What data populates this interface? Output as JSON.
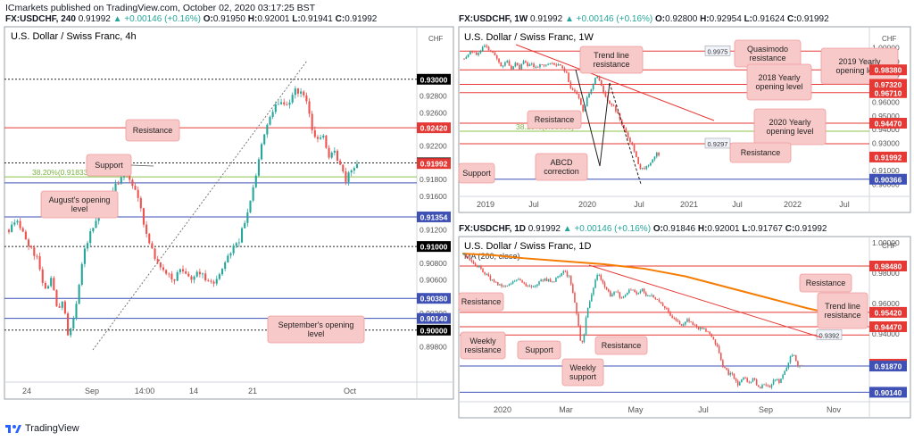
{
  "header": {
    "publisher": "ICmarkets published on TradingView.com, October 02, 2020 03:17:25 BST"
  },
  "footer": {
    "brand": "TradingView"
  },
  "colors": {
    "up": "#26a69a",
    "down": "#ef5350",
    "resistance": "#e53935",
    "support": "#3f51b5",
    "fib": "#8bc34a",
    "ma": "#f57c00",
    "box_fill": "#f8c9c9",
    "box_stroke": "#ef9a9a"
  },
  "panels": [
    {
      "id": "h4",
      "ticker": "FX:USDCHF, 240",
      "ohlc": {
        "last": "0.91992",
        "change": "▲ +0.00146 (+0.16%)",
        "o": "0.91950",
        "h": "0.92001",
        "l": "0.91941",
        "c": "0.91992"
      },
      "title": "U.S. Dollar / Swiss Franc, 4h",
      "currency": "CHF"
    },
    {
      "id": "w1",
      "ticker": "FX:USDCHF, 1W",
      "ohlc": {
        "last": "0.91992",
        "change": "▲ +0.00146 (+0.16%)",
        "o": "0.92800",
        "h": "0.92954",
        "l": "0.91624",
        "c": "0.91992"
      },
      "title": "U.S. Dollar / Swiss Franc, 1W",
      "currency": "CHF"
    },
    {
      "id": "d1",
      "ticker": "FX:USDCHF, 1D",
      "ohlc": {
        "last": "0.91992",
        "change": "▲ +0.00146 (+0.16%)",
        "o": "0.91846",
        "h": "0.92001",
        "l": "0.91767",
        "c": "0.91992"
      },
      "title": "U.S. Dollar / Swiss Franc, 1D",
      "subtitle": "MA (200, close)",
      "currency": "CHF"
    }
  ],
  "chart_data": [
    {
      "panel": "h4",
      "type": "candlestick",
      "ylim": [
        0.894,
        0.9335
      ],
      "y_ticks": [
        "0.92800",
        "0.92600",
        "0.92200",
        "0.91800",
        "0.91600",
        "0.91200",
        "0.90800",
        "0.90600",
        "0.90200",
        "0.89800"
      ],
      "x_ticks": [
        "24",
        "Sep",
        "14:00",
        "14",
        "21",
        "Oct"
      ],
      "price_labels": [
        {
          "value": 0.93,
          "text": "0.93000",
          "style": "black"
        },
        {
          "value": 0.9242,
          "text": "0.92420",
          "style": "red"
        },
        {
          "value": 0.92,
          "text": "0.92000",
          "style": "black"
        },
        {
          "value": 0.91992,
          "text": "0.91992",
          "style": "last"
        },
        {
          "value": 0.91354,
          "text": "0.91354",
          "style": "blue"
        },
        {
          "value": 0.91,
          "text": "0.91000",
          "style": "black"
        },
        {
          "value": 0.9038,
          "text": "0.90380",
          "style": "blue"
        },
        {
          "value": 0.9014,
          "text": "0.90140",
          "style": "blue"
        },
        {
          "value": 0.9,
          "text": "0.90000",
          "style": "black"
        }
      ],
      "lines": [
        {
          "value": 0.93,
          "kind": "dotted"
        },
        {
          "value": 0.9242,
          "kind": "resistance"
        },
        {
          "value": 0.92,
          "kind": "dotted"
        },
        {
          "value": 0.91833,
          "kind": "fib",
          "label": "38.20%(0.91833)"
        },
        {
          "value": 0.9176,
          "kind": "support"
        },
        {
          "value": 0.91354,
          "kind": "support"
        },
        {
          "value": 0.91,
          "kind": "dotted"
        },
        {
          "value": 0.9038,
          "kind": "support"
        },
        {
          "value": 0.9014,
          "kind": "support"
        },
        {
          "value": 0.9,
          "kind": "dotted"
        }
      ],
      "annotations": [
        "Resistance",
        "Support",
        "August's opening level",
        "September's opening level"
      ],
      "path": [
        [
          0,
          0.912
        ],
        [
          10,
          0.9128
        ],
        [
          20,
          0.9105
        ],
        [
          30,
          0.9085
        ],
        [
          38,
          0.905
        ],
        [
          45,
          0.906
        ],
        [
          52,
          0.9025
        ],
        [
          58,
          0.904
        ],
        [
          63,
          0.8995
        ],
        [
          70,
          0.902
        ],
        [
          80,
          0.9095
        ],
        [
          90,
          0.9125
        ],
        [
          100,
          0.915
        ],
        [
          110,
          0.9165
        ],
        [
          120,
          0.9185
        ],
        [
          126,
          0.919
        ],
        [
          132,
          0.9175
        ],
        [
          140,
          0.915
        ],
        [
          148,
          0.911
        ],
        [
          156,
          0.9085
        ],
        [
          164,
          0.907
        ],
        [
          175,
          0.906
        ],
        [
          185,
          0.9075
        ],
        [
          195,
          0.906
        ],
        [
          205,
          0.907
        ],
        [
          215,
          0.9055
        ],
        [
          225,
          0.9065
        ],
        [
          235,
          0.909
        ],
        [
          245,
          0.9105
        ],
        [
          255,
          0.914
        ],
        [
          262,
          0.9175
        ],
        [
          268,
          0.921
        ],
        [
          275,
          0.9245
        ],
        [
          282,
          0.9262
        ],
        [
          290,
          0.9275
        ],
        [
          298,
          0.9268
        ],
        [
          306,
          0.929
        ],
        [
          312,
          0.9282
        ],
        [
          318,
          0.9275
        ],
        [
          324,
          0.924
        ],
        [
          330,
          0.9225
        ],
        [
          336,
          0.923
        ],
        [
          342,
          0.9205
        ],
        [
          348,
          0.9215
        ],
        [
          354,
          0.9195
        ],
        [
          360,
          0.918
        ],
        [
          366,
          0.919
        ],
        [
          372,
          0.9199
        ]
      ]
    },
    {
      "panel": "w1",
      "type": "candlestick",
      "ylim": [
        0.895,
        1.0075
      ],
      "y_ticks": [
        "1.00000",
        "0.99000",
        "0.98000",
        "0.97000",
        "0.96000",
        "0.95000",
        "0.94000",
        "0.93000",
        "0.92000",
        "0.91000",
        "0.90000"
      ],
      "x_ticks": [
        "2019",
        "Jul",
        "2020",
        "Jul",
        "2021",
        "Jul",
        "2022",
        "Jul"
      ],
      "price_labels": [
        {
          "value": 0.9838,
          "text": "0.98380",
          "style": "red"
        },
        {
          "value": 0.9732,
          "text": "0.97320",
          "style": "red"
        },
        {
          "value": 0.9671,
          "text": "0.96710",
          "style": "red"
        },
        {
          "value": 0.9447,
          "text": "0.94470",
          "style": "red"
        },
        {
          "value": 0.91992,
          "text": "0.91992",
          "style": "last"
        },
        {
          "value": 0.90366,
          "text": "0.90366",
          "style": "blue"
        }
      ],
      "lines": [
        {
          "value": 0.9975,
          "kind": "resistance",
          "label": "0.9975"
        },
        {
          "value": 0.9838,
          "kind": "resistance"
        },
        {
          "value": 0.9732,
          "kind": "resistance"
        },
        {
          "value": 0.9671,
          "kind": "resistance"
        },
        {
          "value": 0.9447,
          "kind": "resistance"
        },
        {
          "value": 0.93883,
          "kind": "fib",
          "label": "38.20%(0.93883)"
        },
        {
          "value": 0.9297,
          "kind": "resistance",
          "label": "0.9297"
        },
        {
          "value": 0.90366,
          "kind": "support"
        }
      ],
      "annotations": [
        "Trend line resistance",
        "Quasimodo resistance",
        "2019 Yearly opening level",
        "2018 Yearly opening level",
        "2020 Yearly opening level",
        "Resistance",
        "Resistance",
        "ABCD correction",
        "Support"
      ],
      "path": [
        [
          0,
          0.992
        ],
        [
          8,
          0.998
        ],
        [
          15,
          0.9945
        ],
        [
          20,
          0.999
        ],
        [
          25,
          1.002
        ],
        [
          30,
          0.998
        ],
        [
          35,
          0.995
        ],
        [
          40,
          0.989
        ],
        [
          45,
          0.986
        ],
        [
          50,
          0.991
        ],
        [
          55,
          0.983
        ],
        [
          60,
          0.988
        ],
        [
          65,
          0.985
        ],
        [
          70,
          0.99
        ],
        [
          75,
          0.986
        ],
        [
          80,
          0.988
        ],
        [
          85,
          0.984
        ],
        [
          90,
          0.989
        ],
        [
          95,
          0.986
        ],
        [
          100,
          0.99
        ],
        [
          105,
          0.987
        ],
        [
          110,
          0.988
        ],
        [
          115,
          0.985
        ],
        [
          120,
          0.981
        ],
        [
          125,
          0.97
        ],
        [
          130,
          0.968
        ],
        [
          135,
          0.961
        ],
        [
          140,
          0.953
        ],
        [
          145,
          0.965
        ],
        [
          150,
          0.972
        ],
        [
          155,
          0.979
        ],
        [
          160,
          0.974
        ],
        [
          165,
          0.965
        ],
        [
          170,
          0.96
        ],
        [
          175,
          0.957
        ],
        [
          180,
          0.952
        ],
        [
          185,
          0.944
        ],
        [
          190,
          0.938
        ],
        [
          195,
          0.93
        ],
        [
          200,
          0.924
        ],
        [
          205,
          0.912
        ],
        [
          210,
          0.911
        ],
        [
          215,
          0.913
        ],
        [
          220,
          0.917
        ],
        [
          225,
          0.923
        ],
        [
          230,
          0.9199
        ]
      ]
    },
    {
      "panel": "d1",
      "type": "candlestick",
      "ylim": [
        0.8975,
        1.0025
      ],
      "y_ticks": [
        "1.00000",
        "0.98000",
        "0.96000",
        "0.94000"
      ],
      "x_ticks": [
        "2020",
        "Mar",
        "May",
        "Jul",
        "Sep",
        "Nov"
      ],
      "price_labels": [
        {
          "value": 0.9848,
          "text": "0.98480",
          "style": "red"
        },
        {
          "value": 0.9542,
          "text": "0.95420",
          "style": "red"
        },
        {
          "value": 0.9447,
          "text": "0.94470",
          "style": "red"
        },
        {
          "value": 0.91992,
          "text": "0.91992",
          "style": "last"
        },
        {
          "value": 0.9187,
          "text": "0.91870",
          "style": "blue"
        },
        {
          "value": 0.9014,
          "text": "0.90140",
          "style": "blue"
        }
      ],
      "lines": [
        {
          "value": 0.9848,
          "kind": "resistance"
        },
        {
          "value": 0.9542,
          "kind": "resistance"
        },
        {
          "value": 0.9447,
          "kind": "resistance"
        },
        {
          "value": 0.9392,
          "kind": "resistance",
          "label": "0.9392"
        },
        {
          "value": 0.9187,
          "kind": "support"
        },
        {
          "value": 0.9014,
          "kind": "support"
        }
      ],
      "annotations": [
        "Resistance",
        "Trend line resistance",
        "Resistance",
        "Weekly resistance",
        "Support",
        "Resistance",
        "Weekly support"
      ],
      "ma_path": [
        [
          0,
          0.993
        ],
        [
          30,
          0.992
        ],
        [
          60,
          0.99
        ],
        [
          100,
          0.988
        ],
        [
          140,
          0.986
        ],
        [
          180,
          0.983
        ],
        [
          220,
          0.978
        ],
        [
          260,
          0.971
        ],
        [
          300,
          0.964
        ],
        [
          340,
          0.957
        ],
        [
          380,
          0.951
        ]
      ],
      "path": [
        [
          0,
          0.992
        ],
        [
          8,
          0.987
        ],
        [
          16,
          0.985
        ],
        [
          24,
          0.98
        ],
        [
          32,
          0.976
        ],
        [
          40,
          0.972
        ],
        [
          48,
          0.971
        ],
        [
          56,
          0.974
        ],
        [
          64,
          0.976
        ],
        [
          72,
          0.972
        ],
        [
          80,
          0.97
        ],
        [
          88,
          0.975
        ],
        [
          96,
          0.976
        ],
        [
          104,
          0.974
        ],
        [
          112,
          0.979
        ],
        [
          118,
          0.981
        ],
        [
          124,
          0.977
        ],
        [
          130,
          0.96
        ],
        [
          134,
          0.946
        ],
        [
          137,
          0.932
        ],
        [
          140,
          0.937
        ],
        [
          144,
          0.956
        ],
        [
          148,
          0.963
        ],
        [
          152,
          0.97
        ],
        [
          156,
          0.98
        ],
        [
          160,
          0.977
        ],
        [
          166,
          0.97
        ],
        [
          172,
          0.965
        ],
        [
          178,
          0.968
        ],
        [
          184,
          0.964
        ],
        [
          190,
          0.966
        ],
        [
          196,
          0.97
        ],
        [
          202,
          0.966
        ],
        [
          208,
          0.97
        ],
        [
          214,
          0.964
        ],
        [
          220,
          0.966
        ],
        [
          226,
          0.962
        ],
        [
          232,
          0.96
        ],
        [
          238,
          0.956
        ],
        [
          244,
          0.951
        ],
        [
          250,
          0.948
        ],
        [
          256,
          0.946
        ],
        [
          262,
          0.949
        ],
        [
          268,
          0.946
        ],
        [
          274,
          0.944
        ],
        [
          280,
          0.943
        ],
        [
          286,
          0.941
        ],
        [
          292,
          0.938
        ],
        [
          298,
          0.93
        ],
        [
          304,
          0.918
        ],
        [
          310,
          0.914
        ],
        [
          316,
          0.912
        ],
        [
          322,
          0.906
        ],
        [
          328,
          0.911
        ],
        [
          334,
          0.908
        ],
        [
          340,
          0.91
        ],
        [
          346,
          0.904
        ],
        [
          352,
          0.907
        ],
        [
          358,
          0.904
        ],
        [
          364,
          0.91
        ],
        [
          370,
          0.908
        ],
        [
          376,
          0.914
        ],
        [
          382,
          0.924
        ],
        [
          386,
          0.927
        ],
        [
          390,
          0.92
        ],
        [
          394,
          0.9185
        ],
        [
          398,
          0.9199
        ]
      ]
    }
  ]
}
